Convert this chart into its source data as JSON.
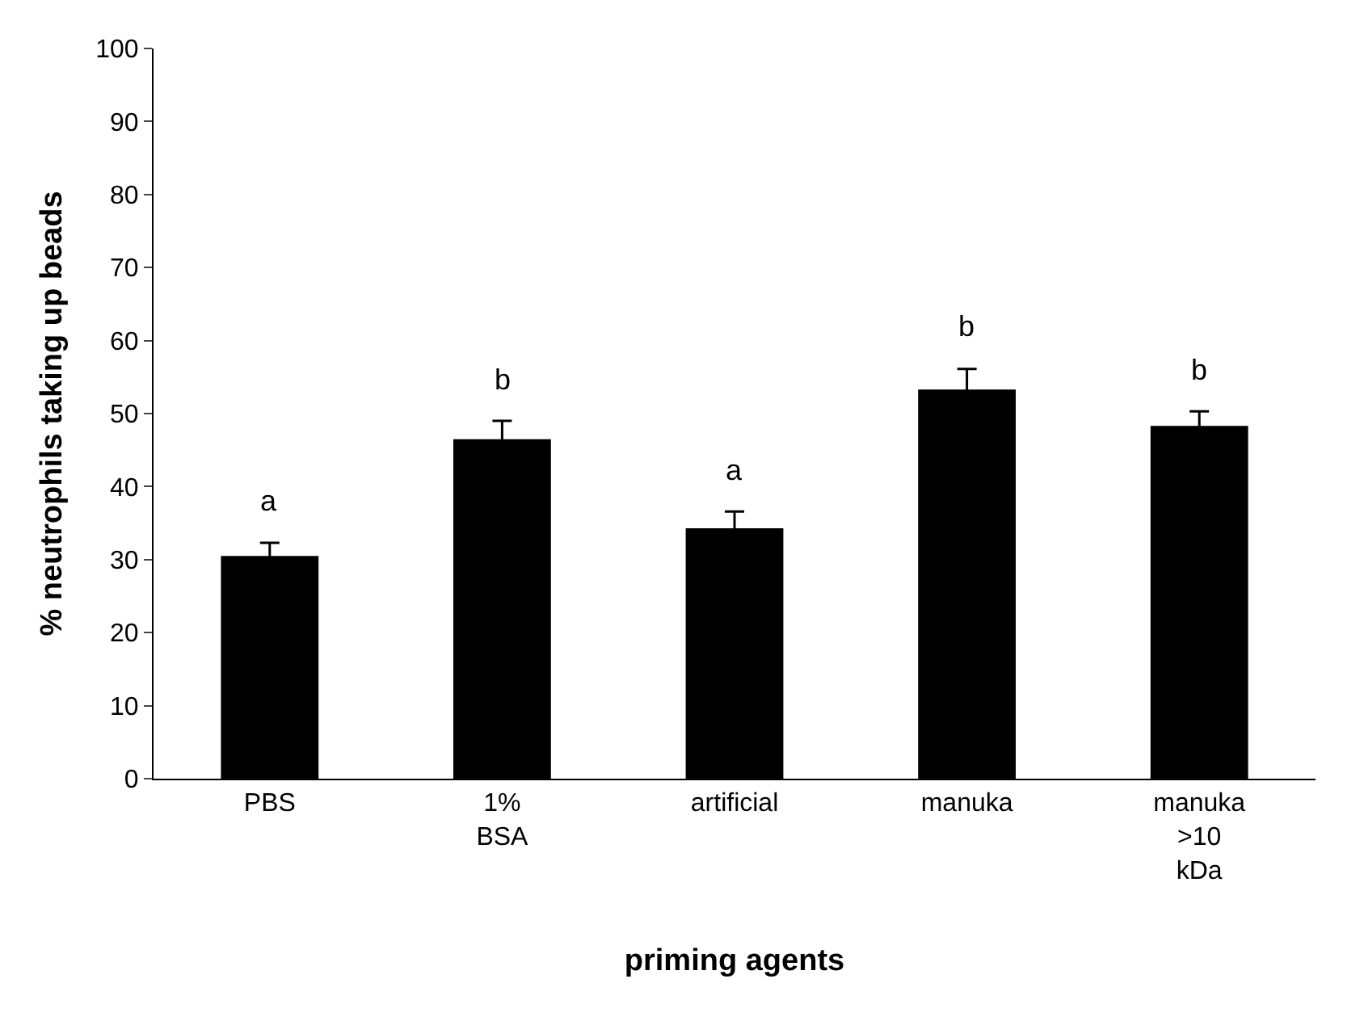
{
  "chart_data": {
    "type": "bar",
    "xlabel": "priming agents",
    "ylabel": "% neutrophils taking up beads",
    "categories": [
      "PBS",
      "1%\nBSA",
      "artificial",
      "manuka",
      "manuka\n>10\nkDa"
    ],
    "values": [
      30.5,
      46.5,
      34.3,
      53.3,
      48.3
    ],
    "errors": [
      1.8,
      2.5,
      2.3,
      2.8,
      2.0
    ],
    "color": "#000000",
    "ylim": [
      0,
      100
    ],
    "yticks": [
      0,
      10,
      20,
      30,
      40,
      50,
      60,
      70,
      80,
      90,
      100
    ],
    "annotations": [
      "a",
      "b",
      "a",
      "b",
      "b"
    ]
  }
}
